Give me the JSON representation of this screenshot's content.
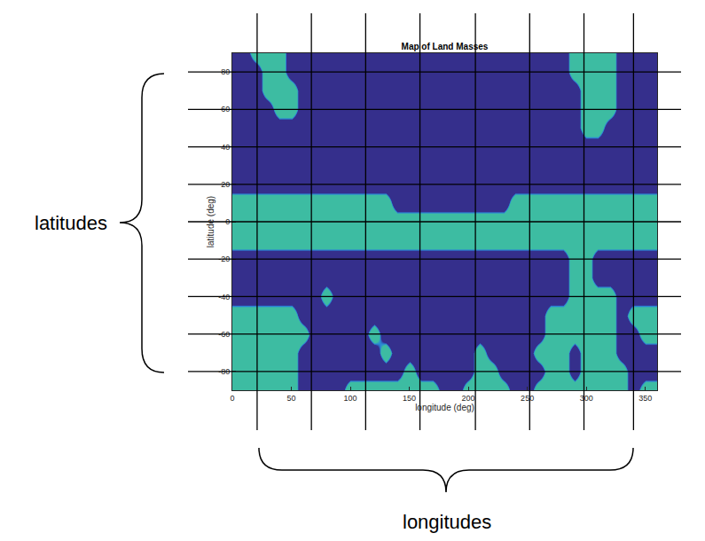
{
  "chart_data": {
    "type": "heatmap",
    "title": "Map of Land Masses",
    "x_label": "longitude (deg)",
    "y_label": "latitude (deg)",
    "x": [
      0,
      10,
      20,
      30,
      40,
      50,
      60,
      70,
      80,
      90,
      100,
      110,
      120,
      130,
      140,
      150,
      160,
      170,
      180,
      190,
      200,
      210,
      220,
      230,
      240,
      250,
      260,
      270,
      280,
      290,
      300,
      310,
      320,
      330,
      340,
      350,
      360
    ],
    "y": [
      -90,
      -80,
      -70,
      -60,
      -50,
      -40,
      -30,
      -20,
      -10,
      0,
      10,
      20,
      30,
      40,
      50,
      60,
      70,
      80,
      90
    ],
    "z": [
      [
        1,
        1,
        1,
        1,
        1,
        1,
        0,
        0,
        0,
        0,
        1,
        1,
        1,
        1,
        1,
        1,
        1,
        1,
        0,
        0,
        1,
        1,
        1,
        1,
        0,
        0,
        1,
        1,
        1,
        1,
        1,
        1,
        1,
        1,
        0,
        1,
        1
      ],
      [
        1,
        1,
        1,
        1,
        1,
        1,
        0,
        0,
        0,
        0,
        0,
        0,
        0,
        0,
        0,
        1,
        0,
        0,
        0,
        0,
        0,
        1,
        1,
        0,
        0,
        0,
        0,
        1,
        1,
        0,
        1,
        1,
        1,
        1,
        0,
        0,
        0
      ],
      [
        1,
        1,
        1,
        1,
        1,
        1,
        0,
        0,
        0,
        0,
        0,
        0,
        0,
        1,
        0,
        0,
        0,
        0,
        0,
        0,
        0,
        1,
        0,
        0,
        0,
        0,
        1,
        1,
        1,
        0,
        1,
        1,
        1,
        0,
        0,
        0,
        0
      ],
      [
        1,
        1,
        1,
        1,
        1,
        1,
        1,
        0,
        0,
        0,
        0,
        0,
        1,
        0,
        0,
        0,
        0,
        0,
        0,
        0,
        0,
        0,
        0,
        0,
        0,
        0,
        0,
        1,
        1,
        1,
        1,
        1,
        1,
        0,
        0,
        1,
        1
      ],
      [
        1,
        1,
        1,
        1,
        1,
        1,
        0,
        0,
        0,
        0,
        0,
        0,
        0,
        0,
        0,
        0,
        0,
        0,
        0,
        0,
        0,
        0,
        0,
        0,
        0,
        0,
        0,
        1,
        1,
        1,
        1,
        1,
        1,
        0,
        1,
        1,
        1
      ],
      [
        0,
        0,
        0,
        0,
        0,
        0,
        0,
        0,
        1,
        0,
        0,
        0,
        0,
        0,
        0,
        0,
        0,
        0,
        0,
        0,
        0,
        0,
        0,
        0,
        0,
        0,
        0,
        0,
        0,
        1,
        1,
        1,
        1,
        0,
        0,
        0,
        0
      ],
      [
        0,
        0,
        0,
        0,
        0,
        0,
        0,
        0,
        0,
        0,
        0,
        0,
        0,
        0,
        0,
        0,
        0,
        0,
        0,
        0,
        0,
        0,
        0,
        0,
        0,
        0,
        0,
        0,
        0,
        1,
        1,
        0,
        0,
        0,
        0,
        0,
        0
      ],
      [
        0,
        0,
        0,
        0,
        0,
        0,
        0,
        0,
        0,
        0,
        0,
        0,
        0,
        0,
        0,
        0,
        0,
        0,
        0,
        0,
        0,
        0,
        0,
        0,
        0,
        0,
        0,
        0,
        0,
        1,
        1,
        0,
        0,
        0,
        0,
        0,
        0
      ],
      [
        1,
        1,
        1,
        1,
        1,
        1,
        1,
        1,
        1,
        1,
        1,
        1,
        1,
        1,
        1,
        1,
        1,
        1,
        1,
        1,
        1,
        1,
        1,
        1,
        1,
        1,
        1,
        1,
        1,
        1,
        1,
        1,
        1,
        1,
        1,
        1,
        1
      ],
      [
        1,
        1,
        1,
        1,
        1,
        1,
        1,
        1,
        1,
        1,
        1,
        1,
        1,
        1,
        1,
        1,
        1,
        1,
        1,
        1,
        1,
        1,
        1,
        1,
        1,
        1,
        1,
        1,
        1,
        1,
        1,
        1,
        1,
        1,
        1,
        1,
        1
      ],
      [
        1,
        1,
        1,
        1,
        1,
        1,
        1,
        1,
        1,
        1,
        1,
        1,
        1,
        1,
        0,
        0,
        0,
        0,
        0,
        0,
        0,
        0,
        0,
        0,
        1,
        1,
        1,
        1,
        1,
        1,
        1,
        1,
        1,
        1,
        1,
        1,
        1
      ],
      [
        0,
        0,
        0,
        0,
        0,
        0,
        0,
        0,
        0,
        0,
        0,
        0,
        0,
        0,
        0,
        0,
        0,
        0,
        0,
        0,
        0,
        0,
        0,
        0,
        0,
        0,
        0,
        0,
        0,
        0,
        0,
        0,
        0,
        0,
        0,
        0,
        0
      ],
      [
        0,
        0,
        0,
        0,
        0,
        0,
        0,
        0,
        0,
        0,
        0,
        0,
        0,
        0,
        0,
        0,
        0,
        0,
        0,
        0,
        0,
        0,
        0,
        0,
        0,
        0,
        0,
        0,
        0,
        0,
        0,
        0,
        0,
        0,
        0,
        0,
        0
      ],
      [
        0,
        0,
        0,
        0,
        0,
        0,
        0,
        0,
        0,
        0,
        0,
        0,
        0,
        0,
        0,
        0,
        0,
        0,
        0,
        0,
        0,
        0,
        0,
        0,
        0,
        0,
        0,
        0,
        0,
        0,
        0,
        0,
        0,
        0,
        0,
        0,
        0
      ],
      [
        0,
        0,
        0,
        0,
        0,
        0,
        0,
        0,
        0,
        0,
        0,
        0,
        0,
        0,
        0,
        0,
        0,
        0,
        0,
        0,
        0,
        0,
        0,
        0,
        0,
        0,
        0,
        0,
        0,
        0,
        1,
        1,
        0,
        0,
        0,
        0,
        0
      ],
      [
        0,
        0,
        0,
        0,
        1,
        1,
        0,
        0,
        0,
        0,
        0,
        0,
        0,
        0,
        0,
        0,
        0,
        0,
        0,
        0,
        0,
        0,
        0,
        0,
        0,
        0,
        0,
        0,
        0,
        0,
        1,
        1,
        1,
        0,
        0,
        0,
        0
      ],
      [
        0,
        0,
        0,
        1,
        1,
        1,
        0,
        0,
        0,
        0,
        0,
        0,
        0,
        0,
        0,
        0,
        0,
        0,
        0,
        0,
        0,
        0,
        0,
        0,
        0,
        0,
        0,
        0,
        0,
        0,
        1,
        1,
        1,
        0,
        0,
        0,
        0
      ],
      [
        0,
        0,
        0,
        1,
        1,
        0,
        0,
        0,
        0,
        0,
        0,
        0,
        0,
        0,
        0,
        0,
        0,
        0,
        0,
        0,
        0,
        0,
        0,
        0,
        0,
        0,
        0,
        0,
        0,
        1,
        1,
        1,
        1,
        0,
        0,
        0,
        0
      ],
      [
        0,
        0,
        1,
        1,
        1,
        0,
        0,
        0,
        0,
        0,
        0,
        0,
        0,
        0,
        0,
        0,
        0,
        0,
        0,
        0,
        0,
        0,
        0,
        0,
        0,
        0,
        0,
        0,
        0,
        1,
        1,
        1,
        1,
        0,
        0,
        0,
        0
      ]
    ],
    "zlim": [
      0,
      1
    ],
    "colors": [
      "#352f8c",
      "#3dbca2"
    ],
    "xlim": [
      0,
      360
    ],
    "ylim": [
      -90,
      90
    ],
    "xticks": [
      0,
      50,
      100,
      150,
      200,
      250,
      300,
      350
    ],
    "yticks": [
      -80,
      -60,
      -40,
      -20,
      0,
      20,
      40,
      60,
      80
    ],
    "grid": false,
    "annotations": [
      {
        "text": "latitudes",
        "y_lines": [
          80,
          60,
          40,
          20,
          0,
          -20,
          -40,
          -60,
          -80
        ]
      },
      {
        "text": "longitudes",
        "x_lines": [
          21,
          67,
          113,
          159,
          206,
          252,
          298,
          340
        ]
      }
    ]
  }
}
